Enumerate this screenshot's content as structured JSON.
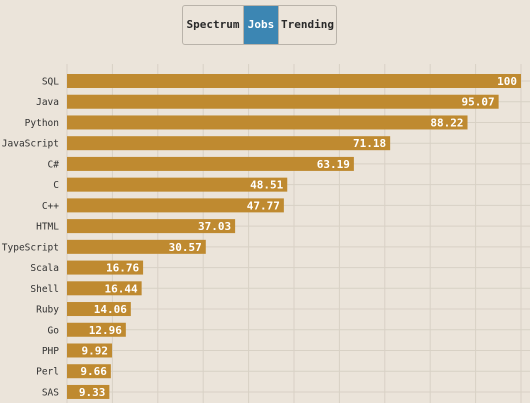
{
  "tabs": [
    {
      "label": "Spectrum",
      "active": false
    },
    {
      "label": "Jobs",
      "active": true
    },
    {
      "label": "Trending",
      "active": false
    }
  ],
  "colors": {
    "bar": "#bf8a30",
    "active_tab": "#3c86b3",
    "background": "#ebe4da"
  },
  "chart_data": {
    "type": "bar",
    "orientation": "horizontal",
    "categories": [
      "SQL",
      "Java",
      "Python",
      "JavaScript",
      "C#",
      "C",
      "C++",
      "HTML",
      "TypeScript",
      "Scala",
      "Shell",
      "Ruby",
      "Go",
      "PHP",
      "Perl",
      "SAS"
    ],
    "values": [
      100,
      95.07,
      88.22,
      71.18,
      63.19,
      48.51,
      47.77,
      37.03,
      30.57,
      16.76,
      16.44,
      14.06,
      12.96,
      9.92,
      9.66,
      9.33
    ],
    "value_labels": [
      "100",
      "95.07",
      "88.22",
      "71.18",
      "63.19",
      "48.51",
      "47.77",
      "37.03",
      "30.57",
      "16.76",
      "16.44",
      "14.06",
      "12.96",
      "9.92",
      "9.66",
      "9.33"
    ],
    "xlim": [
      0,
      100
    ],
    "grid": true,
    "legend": "none"
  }
}
